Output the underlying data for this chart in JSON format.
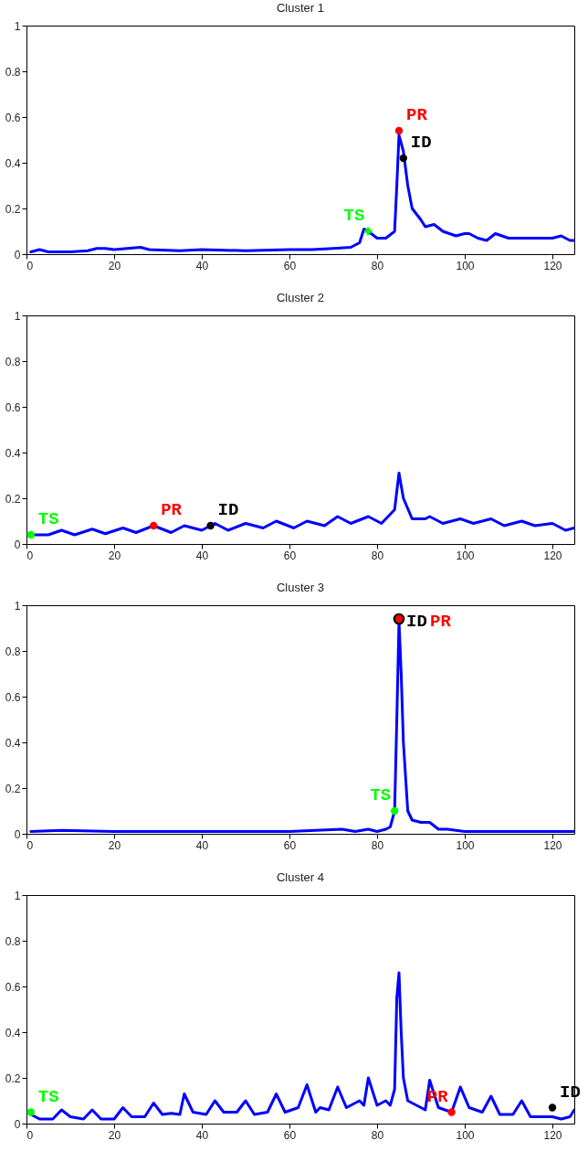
{
  "chart_data": [
    {
      "type": "line",
      "title": "Cluster 1",
      "xlim": [
        0,
        125
      ],
      "ylim": [
        0,
        1
      ],
      "xticks": [
        0,
        20,
        40,
        60,
        80,
        100,
        120
      ],
      "yticks": [
        0,
        0.2,
        0.4,
        0.6,
        0.8,
        1
      ],
      "grid": false,
      "line_style": "solid",
      "series": [
        {
          "color": "#0000ff",
          "marker": "none",
          "x": [
            1,
            3,
            5,
            10,
            14,
            16,
            18,
            20,
            23,
            26,
            28,
            35,
            40,
            50,
            60,
            65,
            70,
            74,
            76,
            77,
            78,
            80,
            82,
            84,
            84.5,
            85,
            86,
            87,
            88,
            90,
            91,
            93,
            95,
            98,
            100,
            101,
            103,
            105,
            107,
            110,
            112,
            115,
            118,
            120,
            122,
            124,
            125
          ],
          "values": [
            0.01,
            0.02,
            0.01,
            0.01,
            0.015,
            0.025,
            0.025,
            0.02,
            0.025,
            0.03,
            0.02,
            0.015,
            0.02,
            0.015,
            0.02,
            0.02,
            0.025,
            0.03,
            0.05,
            0.11,
            0.1,
            0.07,
            0.07,
            0.1,
            0.3,
            0.52,
            0.45,
            0.3,
            0.2,
            0.15,
            0.12,
            0.13,
            0.1,
            0.08,
            0.09,
            0.09,
            0.07,
            0.06,
            0.09,
            0.07,
            0.07,
            0.07,
            0.07,
            0.07,
            0.08,
            0.06,
            0.06
          ]
        },
        {
          "type": "scatter",
          "name": "TS",
          "color": "#00ff00",
          "marker": "cross",
          "x": [
            78
          ],
          "values": [
            0.1
          ]
        },
        {
          "type": "scatter",
          "name": "PR",
          "color": "#ff0000",
          "marker": "circle",
          "x": [
            85
          ],
          "values": [
            0.54
          ]
        },
        {
          "type": "scatter",
          "name": "ID",
          "color": "#000000",
          "marker": "circle",
          "x": [
            86
          ],
          "values": [
            0.42
          ]
        }
      ]
    },
    {
      "type": "line",
      "title": "Cluster 2",
      "xlim": [
        0,
        125
      ],
      "ylim": [
        0,
        1
      ],
      "xticks": [
        0,
        20,
        40,
        60,
        80,
        100,
        120
      ],
      "yticks": [
        0,
        0.2,
        0.4,
        0.6,
        0.8,
        1
      ],
      "grid": false,
      "line_style": "solid",
      "series": [
        {
          "color": "#0000ff",
          "marker": "none",
          "x": [
            1,
            3,
            5,
            8,
            11,
            15,
            18,
            22,
            25,
            29,
            33,
            36,
            40,
            43,
            46,
            50,
            54,
            57,
            61,
            64,
            68,
            71,
            74,
            78,
            81,
            84,
            85,
            86,
            88,
            91,
            92,
            95,
            99,
            102,
            106,
            109,
            113,
            116,
            120,
            123,
            125
          ],
          "values": [
            0.04,
            0.04,
            0.04,
            0.06,
            0.04,
            0.065,
            0.045,
            0.07,
            0.05,
            0.08,
            0.05,
            0.08,
            0.06,
            0.09,
            0.06,
            0.09,
            0.07,
            0.1,
            0.07,
            0.1,
            0.08,
            0.12,
            0.09,
            0.12,
            0.09,
            0.15,
            0.31,
            0.2,
            0.11,
            0.11,
            0.12,
            0.09,
            0.11,
            0.09,
            0.11,
            0.08,
            0.1,
            0.08,
            0.09,
            0.06,
            0.07
          ]
        },
        {
          "type": "scatter",
          "name": "TS",
          "color": "#00ff00",
          "marker": "circle",
          "x": [
            1
          ],
          "values": [
            0.04
          ]
        },
        {
          "type": "scatter",
          "name": "PR",
          "color": "#ff0000",
          "marker": "circle",
          "x": [
            29
          ],
          "values": [
            0.08
          ]
        },
        {
          "type": "scatter",
          "name": "ID",
          "color": "#000000",
          "marker": "circle",
          "x": [
            42
          ],
          "values": [
            0.08
          ]
        }
      ]
    },
    {
      "type": "line",
      "title": "Cluster 3",
      "xlim": [
        0,
        125
      ],
      "ylim": [
        0,
        1
      ],
      "xticks": [
        0,
        20,
        40,
        60,
        80,
        100,
        120
      ],
      "yticks": [
        0,
        0.2,
        0.4,
        0.6,
        0.8,
        1
      ],
      "grid": false,
      "line_style": "solid",
      "series": [
        {
          "color": "#0000ff",
          "marker": "none",
          "x": [
            1,
            8,
            20,
            40,
            60,
            72,
            75,
            78,
            80,
            82,
            83,
            84,
            84.5,
            85,
            85.5,
            86,
            87,
            88,
            90,
            92,
            94,
            96,
            100,
            125
          ],
          "values": [
            0.01,
            0.015,
            0.01,
            0.01,
            0.01,
            0.02,
            0.01,
            0.02,
            0.01,
            0.02,
            0.03,
            0.1,
            0.5,
            0.93,
            0.7,
            0.4,
            0.1,
            0.06,
            0.05,
            0.05,
            0.02,
            0.02,
            0.01,
            0.01
          ]
        },
        {
          "type": "scatter",
          "name": "TS",
          "color": "#00ff00",
          "marker": "circle",
          "x": [
            84
          ],
          "values": [
            0.1
          ]
        },
        {
          "type": "scatter",
          "name": "ID",
          "color": "#000000",
          "marker": "circle",
          "x": [
            85
          ],
          "values": [
            0.94
          ]
        },
        {
          "type": "scatter",
          "name": "PR",
          "color": "#ff0000",
          "marker": "circle",
          "x": [
            85
          ],
          "values": [
            0.94
          ]
        }
      ]
    },
    {
      "type": "line",
      "title": "Cluster 4",
      "xlim": [
        0,
        125
      ],
      "ylim": [
        0,
        1
      ],
      "xticks": [
        0,
        20,
        40,
        60,
        80,
        100,
        120
      ],
      "yticks": [
        0,
        0.2,
        0.4,
        0.6,
        0.8,
        1
      ],
      "grid": false,
      "line_style": "solid",
      "series": [
        {
          "color": "#0000ff",
          "marker": "none",
          "x": [
            1,
            3,
            6,
            8,
            10,
            13,
            15,
            17,
            20,
            22,
            24,
            27,
            29,
            31,
            33,
            35,
            36,
            38,
            41,
            43,
            45,
            48,
            50,
            52,
            55,
            57,
            59,
            62,
            64,
            66,
            67,
            69,
            71,
            73,
            76,
            77,
            78,
            80,
            82,
            83,
            84,
            84.5,
            85,
            85.5,
            86,
            87,
            90,
            91,
            92,
            94,
            97,
            99,
            101,
            104,
            106,
            108,
            111,
            113,
            115,
            118,
            120,
            122,
            124,
            125
          ],
          "values": [
            0.04,
            0.02,
            0.02,
            0.06,
            0.03,
            0.02,
            0.06,
            0.02,
            0.02,
            0.07,
            0.03,
            0.03,
            0.09,
            0.04,
            0.045,
            0.04,
            0.13,
            0.05,
            0.04,
            0.1,
            0.05,
            0.05,
            0.1,
            0.04,
            0.05,
            0.13,
            0.05,
            0.07,
            0.17,
            0.05,
            0.07,
            0.06,
            0.16,
            0.07,
            0.1,
            0.08,
            0.2,
            0.08,
            0.1,
            0.08,
            0.15,
            0.55,
            0.66,
            0.4,
            0.2,
            0.1,
            0.07,
            0.06,
            0.19,
            0.07,
            0.05,
            0.16,
            0.07,
            0.05,
            0.12,
            0.04,
            0.04,
            0.1,
            0.03,
            0.03,
            0.03,
            0.02,
            0.03,
            0.06
          ]
        },
        {
          "type": "scatter",
          "name": "TS",
          "color": "#00ff00",
          "marker": "circle",
          "x": [
            1
          ],
          "values": [
            0.05
          ]
        },
        {
          "type": "scatter",
          "name": "PR",
          "color": "#ff0000",
          "marker": "circle",
          "x": [
            97
          ],
          "values": [
            0.05
          ]
        },
        {
          "type": "scatter",
          "name": "ID",
          "color": "#000000",
          "marker": "circle",
          "x": [
            120
          ],
          "values": [
            0.07
          ]
        }
      ]
    }
  ]
}
